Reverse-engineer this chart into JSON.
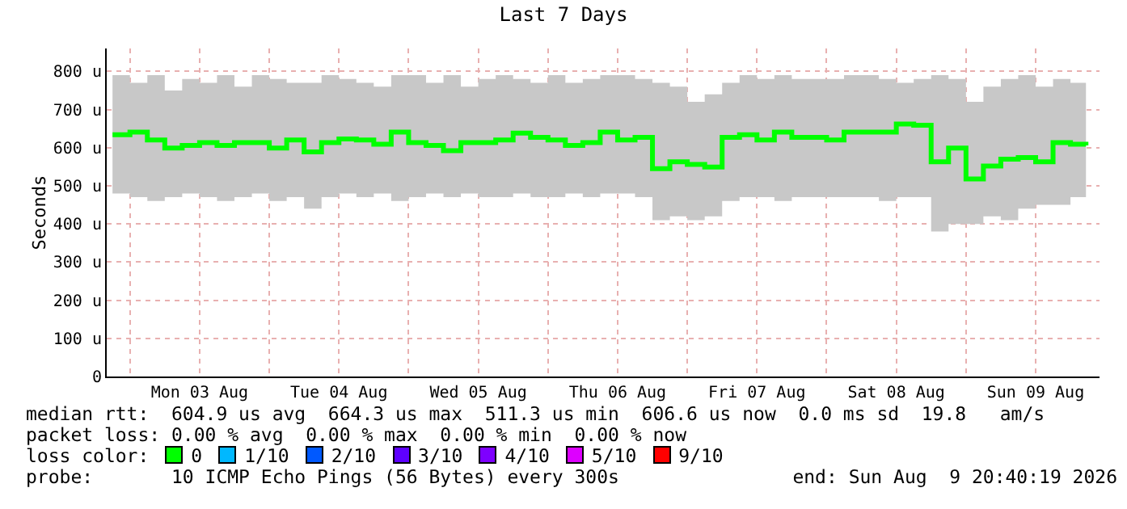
{
  "chart_data": {
    "type": "step",
    "title": "Last 7 Days",
    "ylabel": "Seconds",
    "x": [
      "2026-08-02T21:00",
      "2026-08-03T00:00",
      "2026-08-03T03:00",
      "2026-08-03T06:00",
      "2026-08-03T09:00",
      "2026-08-03T12:00",
      "2026-08-03T15:00",
      "2026-08-03T18:00",
      "2026-08-03T21:00",
      "2026-08-04T00:00",
      "2026-08-04T03:00",
      "2026-08-04T06:00",
      "2026-08-04T09:00",
      "2026-08-04T12:00",
      "2026-08-04T15:00",
      "2026-08-04T18:00",
      "2026-08-04T21:00",
      "2026-08-05T00:00",
      "2026-08-05T03:00",
      "2026-08-05T06:00",
      "2026-08-05T09:00",
      "2026-08-05T12:00",
      "2026-08-05T15:00",
      "2026-08-05T18:00",
      "2026-08-05T21:00",
      "2026-08-06T00:00",
      "2026-08-06T03:00",
      "2026-08-06T06:00",
      "2026-08-06T09:00",
      "2026-08-06T12:00",
      "2026-08-06T15:00",
      "2026-08-06T18:00",
      "2026-08-06T21:00",
      "2026-08-07T00:00",
      "2026-08-07T03:00",
      "2026-08-07T06:00",
      "2026-08-07T09:00",
      "2026-08-07T12:00",
      "2026-08-07T15:00",
      "2026-08-07T18:00",
      "2026-08-07T21:00",
      "2026-08-08T00:00",
      "2026-08-08T03:00",
      "2026-08-08T06:00",
      "2026-08-08T09:00",
      "2026-08-08T12:00",
      "2026-08-08T15:00",
      "2026-08-08T18:00",
      "2026-08-08T21:00",
      "2026-08-09T00:00",
      "2026-08-09T03:00",
      "2026-08-09T06:00",
      "2026-08-09T09:00",
      "2026-08-09T12:00",
      "2026-08-09T15:00",
      "2026-08-09T18:00",
      "2026-08-09T20:40"
    ],
    "series": [
      {
        "color": "#00ff00",
        "values": [
          634,
          641,
          620,
          599,
          606,
          613,
          606,
          613,
          613,
          599,
          620,
          589,
          613,
          623,
          620,
          609,
          641,
          613,
          606,
          592,
          613,
          613,
          620,
          638,
          627,
          620,
          606,
          613,
          641,
          620,
          627,
          545,
          563,
          556,
          549,
          627,
          634,
          620,
          641,
          627,
          627,
          620,
          641,
          641,
          641,
          662,
          659,
          563,
          599,
          518,
          552,
          570,
          574,
          563,
          613,
          609,
          606
        ],
        "lower": [
          480,
          470,
          460,
          470,
          480,
          470,
          460,
          470,
          480,
          460,
          470,
          440,
          470,
          480,
          470,
          480,
          460,
          470,
          480,
          470,
          480,
          470,
          470,
          480,
          470,
          470,
          480,
          470,
          480,
          480,
          470,
          410,
          420,
          410,
          420,
          460,
          470,
          470,
          460,
          470,
          470,
          470,
          470,
          470,
          460,
          470,
          470,
          380,
          400,
          400,
          420,
          410,
          440,
          450,
          450,
          470,
          470
        ],
        "upper": [
          790,
          770,
          790,
          750,
          780,
          770,
          790,
          760,
          790,
          780,
          770,
          770,
          790,
          780,
          770,
          760,
          790,
          790,
          770,
          790,
          760,
          780,
          790,
          780,
          770,
          790,
          770,
          780,
          790,
          790,
          780,
          770,
          760,
          720,
          740,
          770,
          790,
          780,
          790,
          780,
          780,
          780,
          790,
          790,
          780,
          770,
          780,
          790,
          780,
          720,
          760,
          780,
          790,
          760,
          780,
          770,
          700
        ]
      }
    ],
    "xlim": [
      "2026-08-02T20:00",
      "2026-08-09T23:00"
    ],
    "xticks": [
      {
        "value": "2026-08-03T00:00",
        "label": null
      },
      {
        "value": "2026-08-03T12:00",
        "label": "Mon 03 Aug"
      },
      {
        "value": "2026-08-04T00:00",
        "label": null
      },
      {
        "value": "2026-08-04T12:00",
        "label": "Tue 04 Aug"
      },
      {
        "value": "2026-08-05T00:00",
        "label": null
      },
      {
        "value": "2026-08-05T12:00",
        "label": "Wed 05 Aug"
      },
      {
        "value": "2026-08-06T00:00",
        "label": null
      },
      {
        "value": "2026-08-06T12:00",
        "label": "Thu 06 Aug"
      },
      {
        "value": "2026-08-07T00:00",
        "label": null
      },
      {
        "value": "2026-08-07T12:00",
        "label": "Fri 07 Aug"
      },
      {
        "value": "2026-08-08T00:00",
        "label": null
      },
      {
        "value": "2026-08-08T12:00",
        "label": "Sat 08 Aug"
      },
      {
        "value": "2026-08-09T00:00",
        "label": null
      },
      {
        "value": "2026-08-09T12:00",
        "label": "Sun 09 Aug"
      }
    ],
    "ylim": [
      0,
      860
    ],
    "yticks": [
      0,
      {
        "value": 100,
        "label": "100 u"
      },
      {
        "value": 200,
        "label": "200 u"
      },
      {
        "value": 300,
        "label": "300 u"
      },
      {
        "value": 400,
        "label": "400 u"
      },
      {
        "value": 500,
        "label": "500 u"
      },
      {
        "value": 600,
        "label": "600 u"
      },
      {
        "value": 700,
        "label": "700 u"
      },
      {
        "value": 800,
        "label": "800 u"
      }
    ],
    "grid": true,
    "marker": "none",
    "line_style": "solid",
    "annotations": [
      "median rtt:  604.9 us avg  664.3 us max  511.3 us min  606.6 us now  0.0 ms sd  19.8   am/s",
      "packet loss: 0.00 % avg  0.00 % max  0.00 % min  0.00 % now",
      "loss color:",
      "0",
      "1/10",
      "2/10",
      "3/10",
      "4/10",
      "5/10",
      "9/10",
      "probe:       10 ICMP Echo Pings (56 Bytes) every 300s",
      "end: Sun Aug  9 20:40:19 2026"
    ]
  }
}
